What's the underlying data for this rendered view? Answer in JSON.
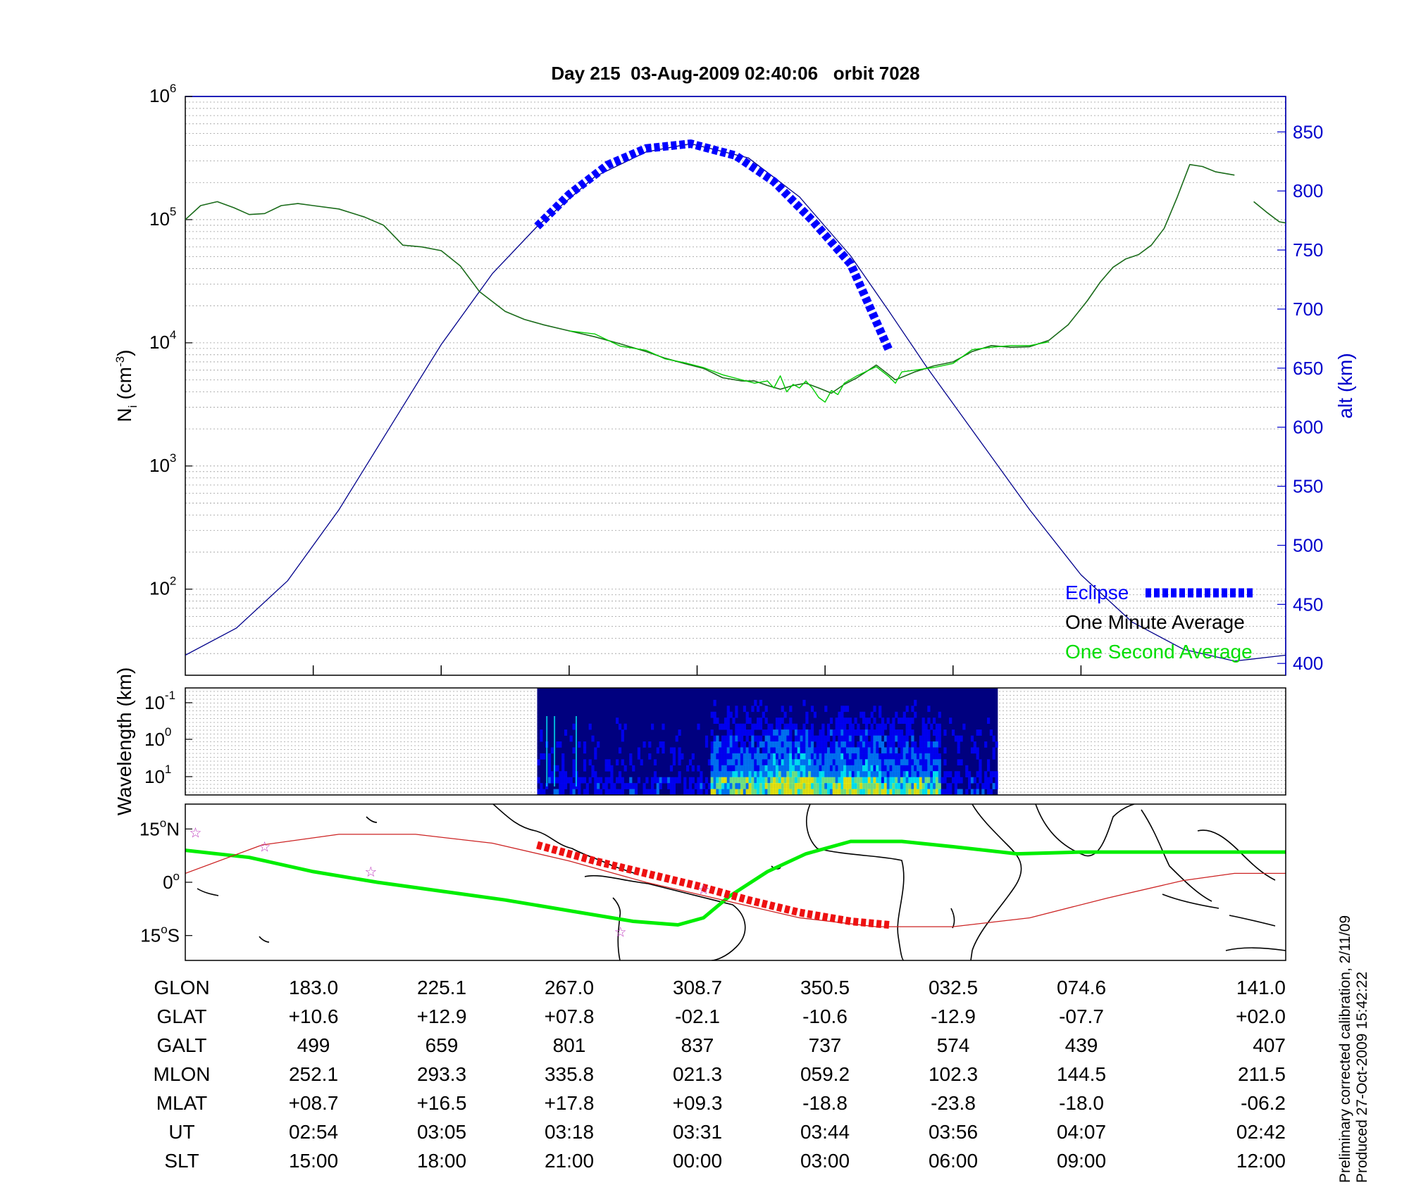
{
  "chart_data": [
    {
      "type": "line",
      "title": "Day 215  03-Aug-2009 02:40:06   orbit 7028",
      "ylabel": "N_i (cm^-3)",
      "ylabel_parts": {
        "main": "N",
        "sub": "i",
        "unit_pre": "(cm",
        "unit_sup": "-3",
        "unit_post": ")"
      },
      "yscale": "log",
      "ylim": [
        20,
        1000000
      ],
      "yticks": [
        {
          "base": "10",
          "exp": "2",
          "v": 100
        },
        {
          "base": "10",
          "exp": "3",
          "v": 1000
        },
        {
          "base": "10",
          "exp": "4",
          "v": 10000
        },
        {
          "base": "10",
          "exp": "5",
          "v": 100000
        },
        {
          "base": "10",
          "exp": "6",
          "v": 1000000
        }
      ],
      "y2label": "alt (km)",
      "y2lim": [
        390,
        880
      ],
      "y2ticks": [
        400,
        450,
        500,
        550,
        600,
        650,
        700,
        750,
        800,
        850
      ],
      "xlim": [
        0,
        8.6
      ],
      "grid": true,
      "legend": {
        "position": "bottom-right",
        "entries": [
          {
            "label": "Eclipse",
            "color": "#0000ff"
          },
          {
            "label": "One Minute Average",
            "color": "#000000"
          },
          {
            "label": "One Second Average",
            "color": "#00dd00"
          }
        ]
      },
      "series": [
        {
          "name": "One Minute Average",
          "color": "#1a6b1a",
          "x": [
            0,
            0.12,
            0.25,
            0.38,
            0.5,
            0.62,
            0.75,
            0.88,
            1.0,
            1.2,
            1.4,
            1.55,
            1.7,
            1.85,
            2.0,
            2.15,
            2.3,
            2.5,
            2.65,
            2.8,
            3.0,
            3.2,
            3.4,
            3.6,
            3.75,
            3.9,
            4.05,
            4.2,
            4.35,
            4.45,
            4.55,
            4.65,
            4.75,
            4.85,
            4.95,
            5.05,
            5.15,
            5.25,
            5.4,
            5.55,
            5.7,
            5.85,
            6.0,
            6.15,
            6.3,
            6.45,
            6.6,
            6.75,
            6.9,
            7.05,
            7.15,
            7.25,
            7.35,
            7.45,
            7.55,
            7.65
          ],
          "y": [
            100000,
            130000,
            140000,
            125000,
            110000,
            112000,
            130000,
            135000,
            130000,
            122000,
            105000,
            90000,
            62000,
            60000,
            56000,
            42000,
            26000,
            18000,
            15500,
            14000,
            12500,
            11200,
            9800,
            8500,
            7500,
            6800,
            6200,
            5200,
            4900,
            4900,
            4500,
            4200,
            4500,
            4700,
            4300,
            3900,
            4600,
            5200,
            6600,
            5000,
            5800,
            6500,
            7000,
            8500,
            9500,
            9200,
            9300,
            10500,
            14000,
            22000,
            31000,
            41000,
            48000,
            52000,
            62000,
            85000
          ]
        },
        {
          "name": "One Minute Average (end)",
          "color": "#1a6b1a",
          "x": [
            7.65,
            7.75,
            7.85,
            7.95,
            8.05,
            8.2
          ],
          "y": [
            85000,
            150000,
            280000,
            270000,
            245000,
            230000
          ]
        },
        {
          "name": "One Minute Average (tail)",
          "color": "#1a6b1a",
          "x": [
            8.35,
            8.45,
            8.55,
            8.6
          ],
          "y": [
            140000,
            115000,
            96000,
            94000
          ]
        },
        {
          "name": "One Second Average",
          "color": "#00cc00",
          "x": [
            3.0,
            3.2,
            3.4,
            3.6,
            3.75,
            3.9,
            4.05,
            4.2,
            4.35,
            4.45,
            4.55,
            4.6,
            4.65,
            4.7,
            4.75,
            4.8,
            4.85,
            4.9,
            4.95,
            5.0,
            5.05,
            5.1,
            5.15,
            5.25,
            5.4,
            5.5,
            5.55,
            5.6,
            5.7,
            5.85,
            6.0,
            6.15,
            6.3,
            6.45,
            6.6,
            6.75
          ],
          "y": [
            12500,
            11800,
            9400,
            8700,
            7400,
            6900,
            6300,
            5500,
            5000,
            4700,
            4900,
            4300,
            5400,
            4000,
            4600,
            4300,
            4900,
            4300,
            3600,
            3300,
            4100,
            3800,
            4700,
            5400,
            6400,
            5300,
            4700,
            5800,
            6000,
            6300,
            6800,
            8800,
            9200,
            9500,
            9500,
            10200
          ]
        },
        {
          "name": "alt (km)",
          "color": "#00008b",
          "axis": "y2",
          "x": [
            0,
            0.4,
            0.8,
            1.2,
            1.6,
            2.0,
            2.4,
            2.75,
            3.2,
            3.6,
            3.95,
            4.4,
            4.8,
            5.2,
            5.5,
            5.8,
            6.2,
            6.6,
            7.0,
            7.4,
            7.8,
            8.2,
            8.6
          ],
          "y": [
            407,
            430,
            470,
            530,
            600,
            670,
            730,
            770,
            812,
            833,
            840,
            828,
            795,
            745,
            698,
            650,
            590,
            530,
            475,
            435,
            412,
            402,
            407
          ]
        },
        {
          "name": "Eclipse",
          "color": "#0000ff",
          "axis": "y2",
          "style": "dashed-thick",
          "x": [
            2.75,
            3.0,
            3.3,
            3.6,
            3.95,
            4.3,
            4.6,
            4.9,
            5.2,
            5.5
          ],
          "y": [
            770,
            797,
            822,
            836,
            840,
            830,
            808,
            775,
            738,
            665
          ]
        }
      ]
    },
    {
      "type": "heatmap",
      "ylabel": "Wavelength (km)",
      "ylabel_text": "Wavelength (km)",
      "yticks": [
        {
          "base": "10",
          "exp": "-1"
        },
        {
          "base": "10",
          "exp": "0"
        },
        {
          "base": "10",
          "exp": "1"
        }
      ],
      "grid": true,
      "x_range": [
        2.75,
        6.35
      ],
      "colormap": [
        "#00007f",
        "#0000ff",
        "#0080ff",
        "#00ffff",
        "#80ff80",
        "#ffff00"
      ],
      "description_values": "spectral intensity high at long wavelengths between x 4.2 and 5.8"
    },
    {
      "type": "map",
      "yticks": [
        {
          "label": "15",
          "deg": "o",
          "hemi": "N",
          "lat": 15
        },
        {
          "label": "0",
          "deg": "o",
          "hemi": "",
          "lat": 0
        },
        {
          "label": "15",
          "deg": "o",
          "hemi": "S",
          "lat": -15
        }
      ],
      "series": [
        {
          "name": "magnetic equator",
          "color": "#00ee00",
          "x": [
            0,
            0.5,
            1.0,
            1.5,
            2.0,
            2.5,
            3.0,
            3.5,
            3.85,
            4.05,
            4.25,
            4.55,
            4.85,
            5.2,
            5.6,
            6.0,
            6.5,
            7.0,
            7.5,
            8.0,
            8.6
          ],
          "lat": [
            9.0,
            7.0,
            3.0,
            0.0,
            -2.5,
            -5.0,
            -8.0,
            -11.0,
            -12.0,
            -10.0,
            -4.0,
            3.0,
            8.0,
            11.5,
            11.5,
            10.0,
            8.0,
            8.5,
            8.5,
            8.5,
            8.5
          ]
        },
        {
          "name": "orbit track",
          "color": "#cc2222",
          "x": [
            0,
            0.6,
            1.2,
            1.8,
            2.4,
            3.0,
            3.6,
            4.2,
            4.8,
            5.4,
            6.0,
            6.6,
            7.2,
            7.8,
            8.2,
            8.6
          ],
          "lat": [
            2.5,
            10.5,
            13.5,
            13.5,
            11.0,
            6.0,
            0.0,
            -5.0,
            -10.0,
            -12.5,
            -12.5,
            -10.0,
            -4.5,
            0.5,
            2.5,
            2.5
          ]
        },
        {
          "name": "eclipse track",
          "color": "#ee1111",
          "x": [
            2.75,
            3.2,
            3.6,
            4.0,
            4.4,
            4.8,
            5.2,
            5.5
          ],
          "lat": [
            10.5,
            6.0,
            2.5,
            -1.0,
            -5.0,
            -8.5,
            -11.0,
            -12.0
          ]
        }
      ],
      "stars": [
        {
          "x": 0.08,
          "lat": 14
        },
        {
          "x": 0.62,
          "lat": 10
        },
        {
          "x": 1.45,
          "lat": 3
        },
        {
          "x": 3.4,
          "lat": -14
        },
        {
          "x": 4.05,
          "lat": -2
        }
      ]
    }
  ],
  "table": {
    "rows": [
      {
        "label": "GLON",
        "values": [
          "183.0",
          "225.1",
          "267.0",
          "308.7",
          "350.5",
          "032.5",
          "074.6",
          "141.0"
        ]
      },
      {
        "label": "GLAT",
        "values": [
          "+10.6",
          "+12.9",
          "+07.8",
          "-02.1",
          "-10.6",
          "-12.9",
          "-07.7",
          "+02.0"
        ]
      },
      {
        "label": "GALT",
        "values": [
          "499",
          "659",
          "801",
          "837",
          "737",
          "574",
          "439",
          "407"
        ]
      },
      {
        "label": "MLON",
        "values": [
          "252.1",
          "293.3",
          "335.8",
          "021.3",
          "059.2",
          "102.3",
          "144.5",
          "211.5"
        ]
      },
      {
        "label": "MLAT",
        "values": [
          "+08.7",
          "+16.5",
          "+17.8",
          "+09.3",
          "-18.8",
          "-23.8",
          "-18.0",
          "-06.2"
        ]
      },
      {
        "label": "UT",
        "values": [
          "02:54",
          "03:05",
          "03:18",
          "03:31",
          "03:44",
          "03:56",
          "04:07",
          "02:42"
        ]
      },
      {
        "label": "SLT",
        "values": [
          "15:00",
          "18:00",
          "21:00",
          "00:00",
          "03:00",
          "06:00",
          "09:00",
          "12:00"
        ]
      }
    ]
  },
  "notes": {
    "line1": "Preliminary corrected calibration, 2/11/09",
    "line2": "Produced 27-Oct-2009 15:42:22"
  }
}
